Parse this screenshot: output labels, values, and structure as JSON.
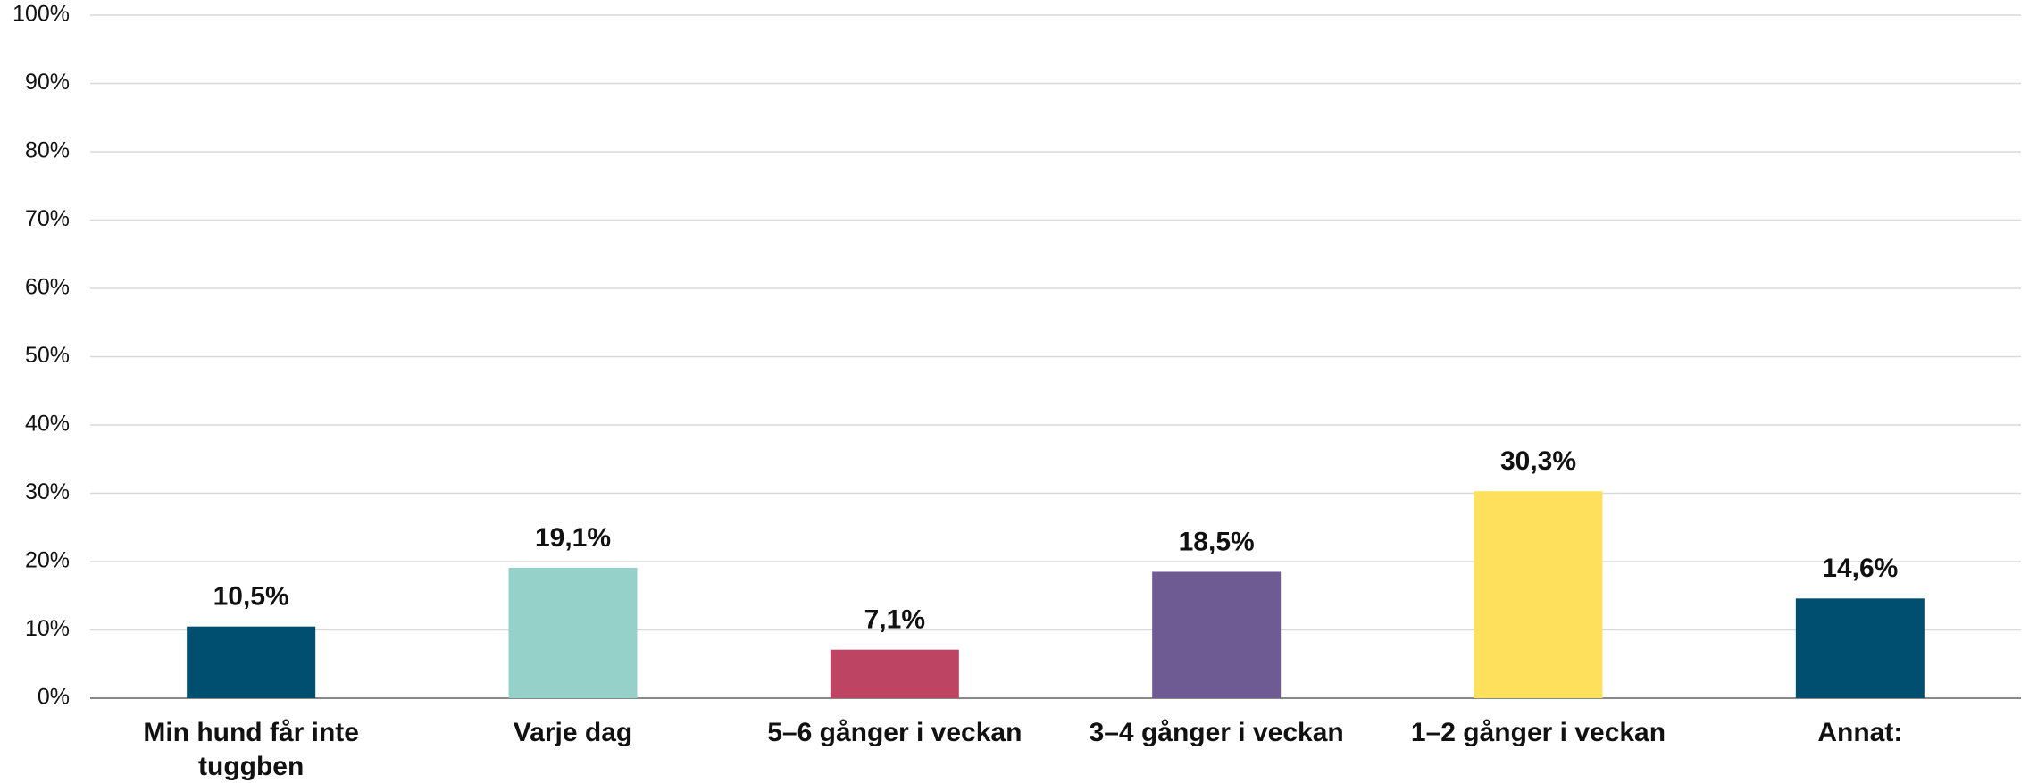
{
  "chart_data": {
    "type": "bar",
    "categories": [
      "Min hund får inte tuggben",
      "Varje dag",
      "5–6 gånger i veckan",
      "3–4 gånger i veckan",
      "1–2 gånger i veckan",
      "Annat:"
    ],
    "values": [
      10.5,
      19.1,
      7.1,
      18.5,
      30.3,
      14.6
    ],
    "value_labels": [
      "10,5%",
      "19,1%",
      "7,1%",
      "18,5%",
      "30,3%",
      "14,6%"
    ],
    "colors": [
      "#004f71",
      "#95d1c8",
      "#bd4563",
      "#6e5b94",
      "#ffe05c",
      "#004f71"
    ],
    "ylim": [
      0,
      100
    ],
    "yticks": [
      {
        "value": 0,
        "label": "0%"
      },
      {
        "value": 10,
        "label": "10%"
      },
      {
        "value": 20,
        "label": "20%"
      },
      {
        "value": 30,
        "label": "30%"
      },
      {
        "value": 40,
        "label": "40%"
      },
      {
        "value": 50,
        "label": "50%"
      },
      {
        "value": 60,
        "label": "60%"
      },
      {
        "value": 70,
        "label": "70%"
      },
      {
        "value": 80,
        "label": "80%"
      },
      {
        "value": 90,
        "label": "90%"
      },
      {
        "value": 100,
        "label": "100%"
      }
    ],
    "grid": true
  }
}
